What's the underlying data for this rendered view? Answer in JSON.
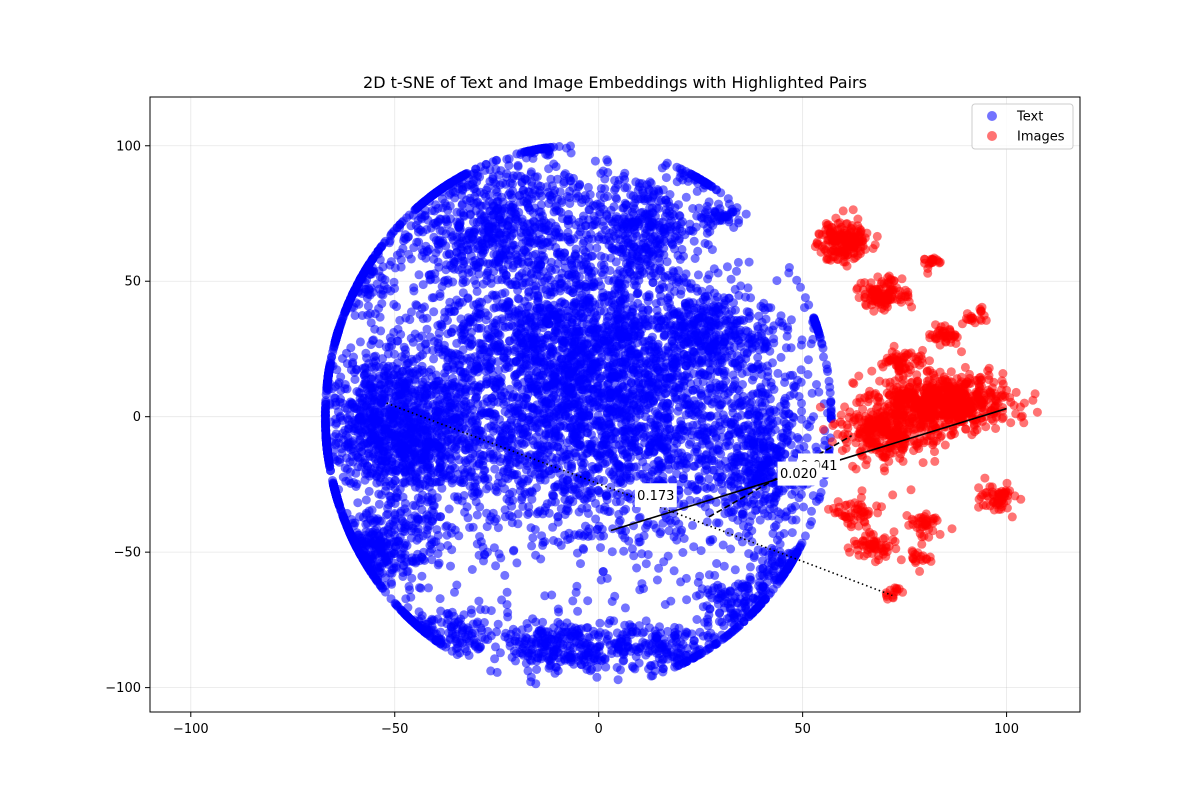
{
  "chart_data": {
    "type": "scatter",
    "title": "2D t-SNE of Text and Image Embeddings with Highlighted Pairs",
    "xlabel": "",
    "ylabel": "",
    "xlim": [
      -110,
      118
    ],
    "ylim": [
      -109,
      118
    ],
    "xticks": [
      -100,
      -50,
      0,
      50,
      100
    ],
    "xtick_labels": [
      "−100",
      "−50",
      "0",
      "50",
      "100"
    ],
    "yticks": [
      -100,
      -50,
      0,
      50,
      100
    ],
    "ytick_labels": [
      "−100",
      "−50",
      "0",
      "50",
      "100"
    ],
    "grid": true,
    "legend_position": "upper-right",
    "series": [
      {
        "name": "Text",
        "color": "#0000ff",
        "opacity": 0.55,
        "clusters": [
          [
            -25,
            70,
            25,
            25,
            700
          ],
          [
            10,
            70,
            15,
            20,
            350
          ],
          [
            -5,
            30,
            40,
            35,
            1400
          ],
          [
            0,
            -5,
            55,
            45,
            2500
          ],
          [
            -55,
            0,
            15,
            25,
            500
          ],
          [
            -55,
            -50,
            15,
            15,
            350
          ],
          [
            -40,
            -80,
            15,
            10,
            200
          ],
          [
            -10,
            -85,
            15,
            10,
            250
          ],
          [
            15,
            -85,
            20,
            10,
            250
          ],
          [
            35,
            -70,
            10,
            10,
            150
          ],
          [
            -40,
            90,
            10,
            8,
            150
          ],
          [
            -15,
            100,
            5,
            6,
            60
          ],
          [
            25,
            90,
            5,
            6,
            50
          ],
          [
            30,
            75,
            5,
            5,
            50
          ],
          [
            -83,
            40,
            5,
            5,
            60
          ],
          [
            -93,
            -15,
            6,
            8,
            120
          ],
          [
            -88,
            -40,
            6,
            6,
            90
          ],
          [
            -78,
            -60,
            5,
            5,
            40
          ],
          [
            -75,
            18,
            5,
            5,
            50
          ],
          [
            55,
            35,
            4,
            4,
            30
          ],
          [
            30,
            30,
            15,
            15,
            250
          ],
          [
            -45,
            -10,
            15,
            30,
            500
          ],
          [
            40,
            -20,
            10,
            25,
            300
          ],
          [
            -60,
            50,
            10,
            15,
            180
          ],
          [
            45,
            -55,
            8,
            8,
            100
          ]
        ]
      },
      {
        "name": "Images",
        "color": "#ff0000",
        "opacity": 0.55,
        "clusters": [
          [
            60,
            65,
            6,
            7,
            180
          ],
          [
            70,
            45,
            6,
            6,
            120
          ],
          [
            85,
            5,
            15,
            10,
            700
          ],
          [
            70,
            -5,
            10,
            12,
            300
          ],
          [
            98,
            -30,
            5,
            5,
            60
          ],
          [
            63,
            -35,
            5,
            5,
            50
          ],
          [
            67,
            -48,
            5,
            5,
            60
          ],
          [
            80,
            -40,
            5,
            5,
            40
          ],
          [
            85,
            30,
            5,
            4,
            40
          ],
          [
            75,
            20,
            5,
            5,
            60
          ],
          [
            72,
            -65,
            3,
            2,
            15
          ],
          [
            78,
            -52,
            3,
            3,
            20
          ],
          [
            82,
            57,
            3,
            3,
            20
          ],
          [
            93,
            37,
            3,
            3,
            20
          ]
        ]
      }
    ],
    "highlighted_pairs": [
      {
        "label": "0.173",
        "style": "dotted",
        "from": [
          -52,
          5
        ],
        "to": [
          72,
          -66
        ],
        "label_at": [
          14,
          -29
        ]
      },
      {
        "label": "0.020",
        "style": "solid",
        "from": [
          3,
          -42
        ],
        "to": [
          100,
          3
        ],
        "label_at": [
          49,
          -21
        ]
      },
      {
        "label": "0.041",
        "style": "dashed",
        "from": [
          27,
          -37
        ],
        "to": [
          62,
          -7
        ],
        "label_at": [
          54,
          -18
        ]
      }
    ]
  }
}
